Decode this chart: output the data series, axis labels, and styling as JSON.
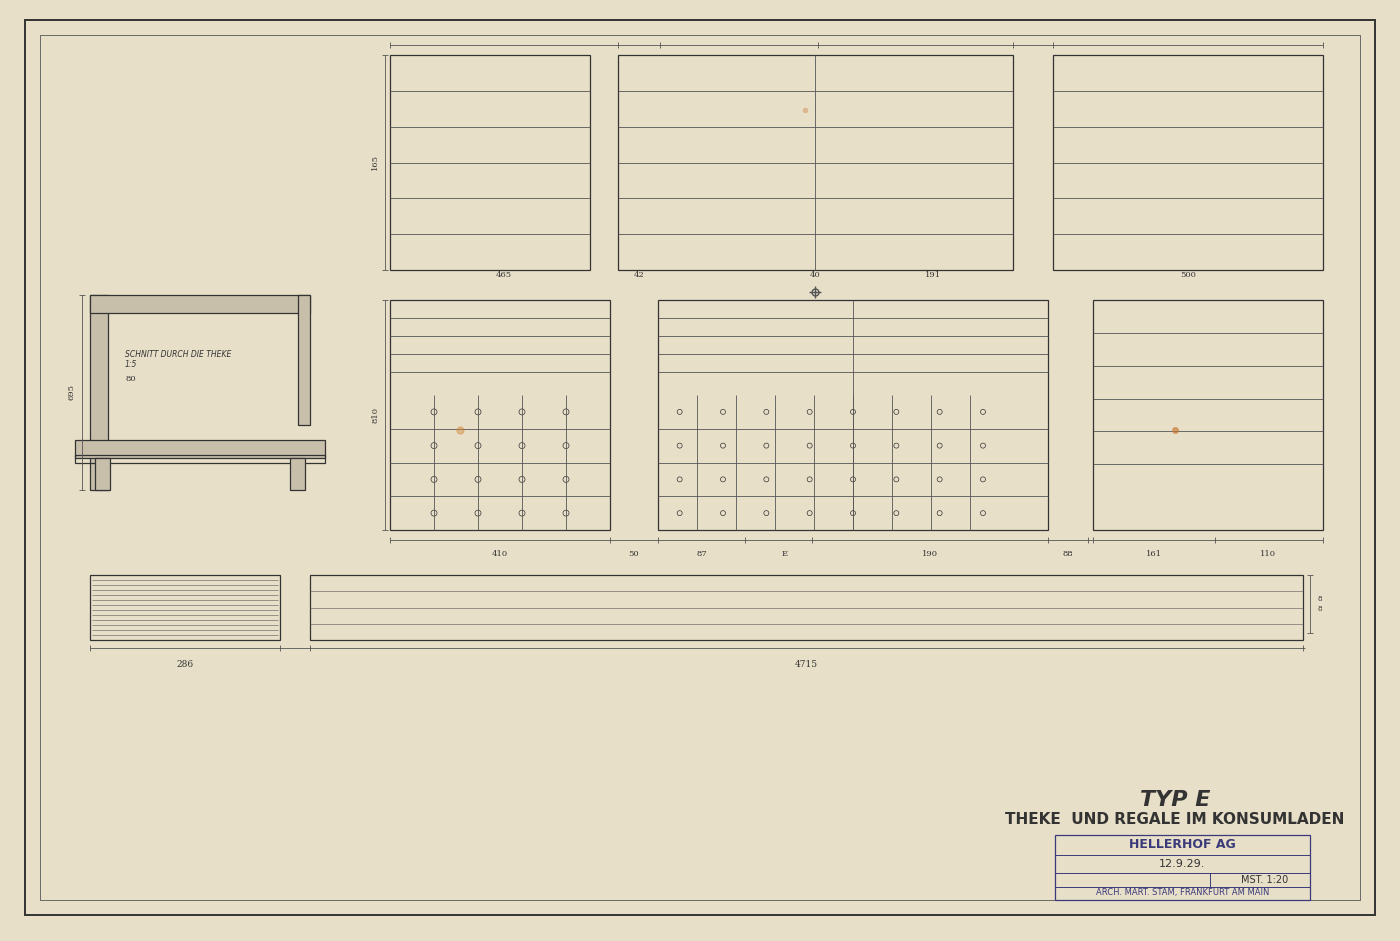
{
  "bg_color": "#e8dfc8",
  "paper_color": "#ede5cf",
  "line_color": "#555555",
  "dark_line": "#333333",
  "title_line1": "TYP E",
  "title_line2": "THEKE  UND REGALE IM KONSUMLADEN",
  "title_line3": "HELLERHOF AG",
  "title_line4": "12.9.29.",
  "title_line5": "MST. 1:20",
  "title_line6": "ARCH. MART. STAM, FRANKFURT AM MAIN",
  "stamp_color": "#3a3a7a",
  "section_label": "SCHNITT DURCH DIE THEKE\n1:5"
}
